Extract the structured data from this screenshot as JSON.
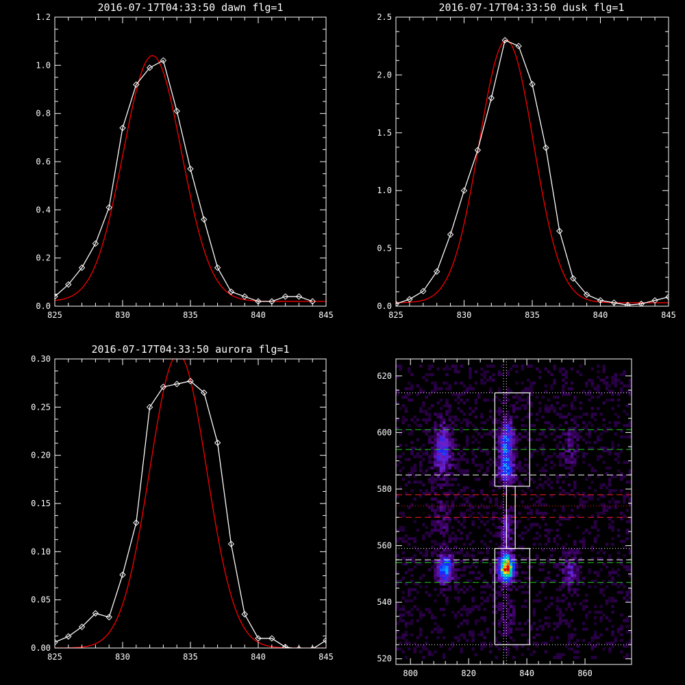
{
  "colors": {
    "background": "#000000",
    "axes": "#ffffff",
    "data": "#ffffff",
    "fit": "#ff0000"
  },
  "chart_data": [
    {
      "type": "line",
      "title": "2016-07-17T04:33:50 dawn flg=1",
      "xlim": [
        825,
        845
      ],
      "ylim": [
        0,
        1.2
      ],
      "xticks": [
        "825",
        "830",
        "835",
        "840",
        "845"
      ],
      "yticks": [
        "0.0",
        "0.2",
        "0.4",
        "0.6",
        "0.8",
        "1.0",
        "1.2"
      ],
      "series": [
        {
          "marker": "diamond",
          "x": [
            825,
            826,
            827,
            828,
            829,
            830,
            831,
            832,
            833,
            834,
            835,
            836,
            837,
            838,
            839,
            840,
            841,
            842,
            843,
            844
          ],
          "y": [
            0.04,
            0.09,
            0.16,
            0.26,
            0.41,
            0.74,
            0.92,
            0.99,
            1.02,
            0.81,
            0.57,
            0.36,
            0.16,
            0.06,
            0.04,
            0.02,
            0.02,
            0.04,
            0.04,
            0.02
          ]
        }
      ],
      "fit": {
        "amp": 1.02,
        "center": 832.2,
        "sigma": 2.15,
        "offset": 0.02
      }
    },
    {
      "type": "line",
      "title": "2016-07-17T04:33:50 dusk flg=1",
      "xlim": [
        825,
        845
      ],
      "ylim": [
        0,
        2.5
      ],
      "xticks": [
        "825",
        "830",
        "835",
        "840",
        "845"
      ],
      "yticks": [
        "0.0",
        "0.5",
        "1.0",
        "1.5",
        "2.0",
        "2.5"
      ],
      "series": [
        {
          "marker": "diamond",
          "x": [
            825,
            826,
            827,
            828,
            829,
            830,
            831,
            832,
            833,
            834,
            835,
            836,
            837,
            838,
            839,
            840,
            841,
            842,
            843,
            844,
            845
          ],
          "y": [
            0.02,
            0.06,
            0.13,
            0.3,
            0.62,
            1.0,
            1.35,
            1.8,
            2.3,
            2.25,
            1.92,
            1.37,
            0.65,
            0.24,
            0.1,
            0.05,
            0.03,
            0.01,
            0.02,
            0.05,
            0.08
          ]
        }
      ],
      "fit": {
        "amp": 2.27,
        "center": 833.1,
        "sigma": 2.0,
        "offset": 0.03
      }
    },
    {
      "type": "line",
      "title": "2016-07-17T04:33:50 aurora flg=1",
      "xlim": [
        825,
        845
      ],
      "ylim": [
        0,
        0.3
      ],
      "xticks": [
        "825",
        "830",
        "835",
        "840",
        "845"
      ],
      "yticks": [
        "0.00",
        "0.05",
        "0.10",
        "0.15",
        "0.20",
        "0.25",
        "0.30"
      ],
      "series": [
        {
          "marker": "diamond",
          "x": [
            825,
            826,
            827,
            828,
            829,
            830,
            831,
            832,
            833,
            834,
            835,
            836,
            837,
            838,
            839,
            840,
            841,
            842,
            843,
            844,
            845
          ],
          "y": [
            0.006,
            0.012,
            0.022,
            0.036,
            0.032,
            0.076,
            0.13,
            0.25,
            0.271,
            0.274,
            0.277,
            0.265,
            0.213,
            0.108,
            0.035,
            0.01,
            0.01,
            0.001,
            -0.001,
            -0.001,
            0.008
          ]
        }
      ],
      "fit": {
        "amp": 0.305,
        "center": 834.1,
        "sigma": 2.1,
        "offset": 0.0
      }
    },
    {
      "type": "heatmap",
      "title": "",
      "xlim": [
        795,
        876
      ],
      "ylim": [
        518,
        626
      ],
      "xticks": [
        "800",
        "820",
        "840",
        "860"
      ],
      "yticks": [
        "520",
        "540",
        "560",
        "580",
        "600",
        "620"
      ],
      "blobs": [
        {
          "x": 833,
          "y": 552,
          "sx": 1.8,
          "sy": 3.5,
          "amp": 1.0
        },
        {
          "x": 833,
          "y": 596,
          "sx": 1.8,
          "sy": 6,
          "amp": 0.5
        },
        {
          "x": 833,
          "y": 586,
          "sx": 1.8,
          "sy": 3,
          "amp": 0.4
        },
        {
          "x": 812,
          "y": 552,
          "sx": 2,
          "sy": 3.5,
          "amp": 0.55
        },
        {
          "x": 811,
          "y": 594,
          "sx": 2.2,
          "sy": 6,
          "amp": 0.4
        },
        {
          "x": 855,
          "y": 551,
          "sx": 2,
          "sy": 4,
          "amp": 0.25
        },
        {
          "x": 855,
          "y": 595,
          "sx": 2,
          "sy": 6,
          "amp": 0.15
        },
        {
          "x": 833,
          "y": 565,
          "sx": 1.5,
          "sy": 5,
          "amp": 0.25
        },
        {
          "x": 833,
          "y": 535,
          "sx": 2,
          "sy": 5,
          "amp": 0.12
        },
        {
          "x": 811,
          "y": 570,
          "sx": 2,
          "sy": 6,
          "amp": 0.12
        }
      ],
      "hlines": [
        {
          "y": 614,
          "color": "#ffffff",
          "style": "dotted"
        },
        {
          "y": 601,
          "color": "#22cc22",
          "style": "dashed"
        },
        {
          "y": 594,
          "color": "#22cc22",
          "style": "dashed"
        },
        {
          "y": 585,
          "color": "#ffffff",
          "style": "dashed"
        },
        {
          "y": 578,
          "color": "#ff2020",
          "style": "dashed"
        },
        {
          "y": 574,
          "color": "#ff2020",
          "style": "dotted"
        },
        {
          "y": 570,
          "color": "#ff2020",
          "style": "dashed"
        },
        {
          "y": 559,
          "color": "#ffffff",
          "style": "dotted"
        },
        {
          "y": 555,
          "color": "#ffffff",
          "style": "dashed"
        },
        {
          "y": 554,
          "color": "#22cc22",
          "style": "dashed"
        },
        {
          "y": 547,
          "color": "#22cc22",
          "style": "dashed"
        },
        {
          "y": 525,
          "color": "#ffffff",
          "style": "dotted"
        }
      ],
      "vlines": [
        {
          "x": 832,
          "color": "#ffffff",
          "style": "dotted"
        },
        {
          "x": 833,
          "color": "#ffffff",
          "style": "dotted"
        }
      ],
      "boxes": [
        {
          "x0": 829,
          "x1": 841,
          "y0": 581,
          "y1": 614
        },
        {
          "x0": 833,
          "x1": 836,
          "y0": 559,
          "y1": 581
        },
        {
          "x0": 829,
          "x1": 841,
          "y0": 525,
          "y1": 559
        }
      ]
    }
  ]
}
